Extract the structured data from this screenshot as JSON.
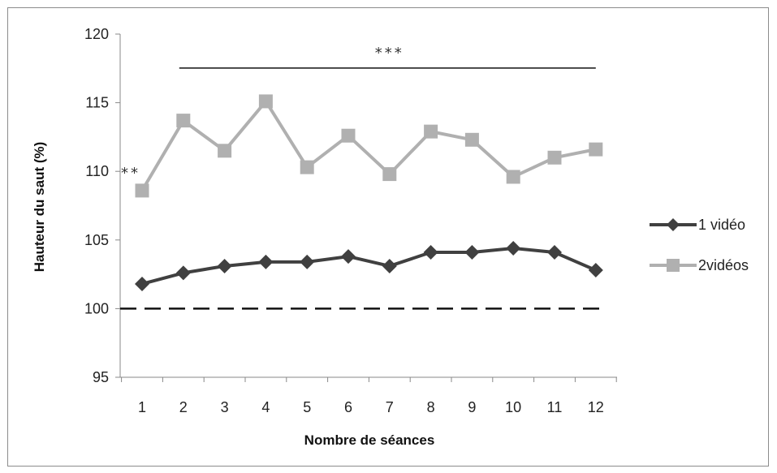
{
  "chart_data": {
    "type": "line",
    "title": "",
    "xlabel": "Nombre de séances",
    "ylabel": "Hauteur du saut (%)",
    "x": [
      1,
      2,
      3,
      4,
      5,
      6,
      7,
      8,
      9,
      10,
      11,
      12
    ],
    "ylim": [
      95,
      120
    ],
    "yticks": [
      95,
      100,
      105,
      110,
      115,
      120
    ],
    "reference_line": {
      "y": 100,
      "style": "dashed"
    },
    "series": [
      {
        "name": "1 vidéo",
        "marker": "diamond",
        "color": "#404040",
        "values": [
          101.8,
          102.6,
          103.1,
          103.4,
          103.4,
          103.8,
          103.1,
          104.1,
          104.1,
          104.4,
          104.1,
          102.8
        ]
      },
      {
        "name": "2vidéos",
        "marker": "square",
        "color": "#b0b0b0",
        "values": [
          108.6,
          113.7,
          111.5,
          115.1,
          110.3,
          112.6,
          109.8,
          112.9,
          112.3,
          109.6,
          111.0,
          111.6
        ]
      }
    ],
    "annotations": [
      {
        "text": "**",
        "x": 1,
        "y": 110
      },
      {
        "text": "***",
        "x_from": 2,
        "x_to": 12,
        "y": 117.7
      }
    ],
    "legend": "right",
    "grid": false
  }
}
